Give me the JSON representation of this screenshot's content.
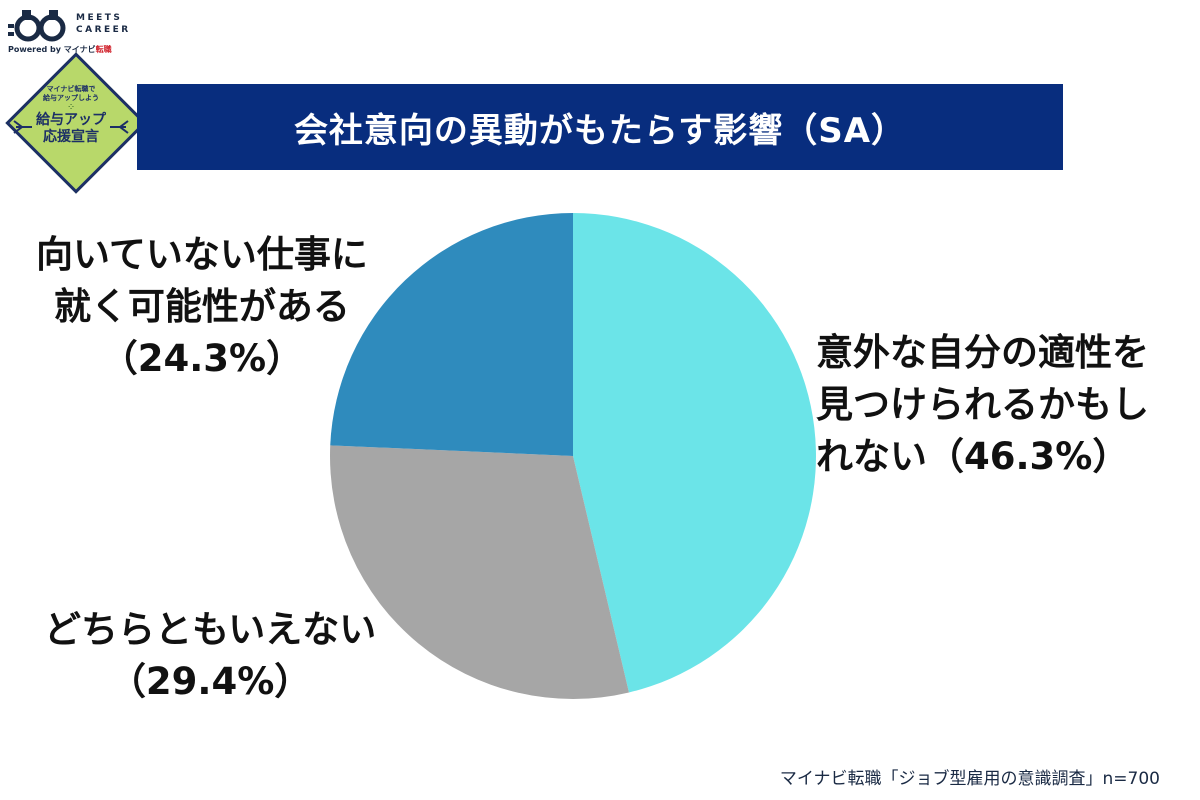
{
  "logo": {
    "text_line1": "MEETS",
    "text_line2": "CAREER",
    "powered_prefix": "Powered by",
    "powered_brand": "マイナビ",
    "powered_suffix": "転職"
  },
  "badge": {
    "line1": "マイナビ転職で",
    "line2": "給与アップしよう",
    "dots": "⁘",
    "main1": "給与アップ",
    "main2": "応援宣言"
  },
  "title": "会社意向の異動がもたらす影響（SA）",
  "chart_data": {
    "type": "pie",
    "start_angle_deg": 0,
    "direction": "clockwise",
    "slices": [
      {
        "label_lines": [
          "意外な自分の適性を",
          "見つけられるかもし",
          "れない（46.3%）"
        ],
        "value": 46.3,
        "color": "#6be4e8"
      },
      {
        "label_lines": [
          "どちらともいえない",
          "（29.4%）"
        ],
        "value": 29.4,
        "color": "#a6a6a6"
      },
      {
        "label_lines": [
          "向いていない仕事に",
          "就く可能性がある",
          "（24.3%）"
        ],
        "value": 24.3,
        "color": "#2f8bbd"
      }
    ]
  },
  "source": "マイナビ転職「ジョブ型雇用の意識調査」n=700"
}
